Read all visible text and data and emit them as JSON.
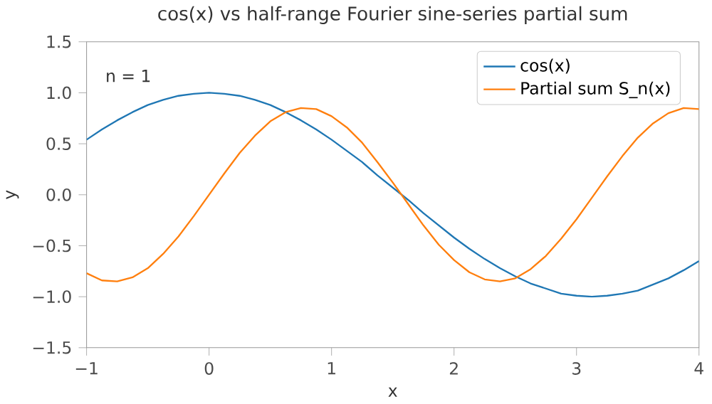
{
  "chart_data": {
    "type": "line",
    "title": "cos(x) vs half-range Fourier sine-series partial sum",
    "xlabel": "x",
    "ylabel": "y",
    "annotations": [
      "n = 1"
    ],
    "x": [
      -1,
      -0.875,
      -0.75,
      -0.625,
      -0.5,
      -0.375,
      -0.25,
      -0.125,
      0,
      0.125,
      0.25,
      0.375,
      0.5,
      0.625,
      0.75,
      0.875,
      1,
      1.125,
      1.25,
      1.375,
      1.5,
      1.625,
      1.75,
      1.875,
      2,
      2.125,
      2.25,
      2.375,
      2.5,
      2.625,
      2.75,
      2.875,
      3,
      3.125,
      3.25,
      3.375,
      3.5,
      3.625,
      3.75,
      3.875,
      4
    ],
    "series": [
      {
        "name": "cos(x)",
        "color": "#1f77b4",
        "values": [
          0.54,
          0.64,
          0.73,
          0.81,
          0.88,
          0.93,
          0.97,
          0.99,
          1.0,
          0.99,
          0.97,
          0.93,
          0.88,
          0.81,
          0.73,
          0.64,
          0.54,
          0.43,
          0.32,
          0.19,
          0.07,
          -0.05,
          -0.18,
          -0.3,
          -0.42,
          -0.53,
          -0.63,
          -0.72,
          -0.8,
          -0.87,
          -0.92,
          -0.97,
          -0.99,
          -1.0,
          -0.99,
          -0.97,
          -0.94,
          -0.88,
          -0.82,
          -0.74,
          -0.65
        ]
      },
      {
        "name": "Partial sum S_n(x)",
        "color": "#ff7f0e",
        "values": [
          -0.77,
          -0.84,
          -0.85,
          -0.81,
          -0.72,
          -0.58,
          -0.41,
          -0.21,
          0,
          0.21,
          0.41,
          0.58,
          0.72,
          0.81,
          0.85,
          0.84,
          0.77,
          0.66,
          0.51,
          0.32,
          0.12,
          -0.09,
          -0.3,
          -0.49,
          -0.64,
          -0.76,
          -0.83,
          -0.85,
          -0.82,
          -0.73,
          -0.6,
          -0.43,
          -0.24,
          -0.03,
          0.18,
          0.38,
          0.56,
          0.7,
          0.8,
          0.85,
          0.84
        ]
      }
    ],
    "xlim": [
      -1,
      4
    ],
    "ylim": [
      -1.5,
      1.5
    ],
    "xticks": [
      {
        "value": -1,
        "label": "−1"
      },
      0,
      1,
      2,
      3,
      4
    ],
    "yticks": [
      {
        "value": -1.5,
        "label": "−1.5"
      },
      {
        "value": -1.0,
        "label": "−1.0"
      },
      {
        "value": -0.5,
        "label": "−0.5"
      },
      {
        "value": 0.0,
        "label": "0.0"
      },
      {
        "value": 0.5,
        "label": "0.5"
      },
      {
        "value": 1.0,
        "label": "1.0"
      },
      {
        "value": 1.5,
        "label": "1.5"
      }
    ],
    "legend": "top right",
    "grid": false
  }
}
